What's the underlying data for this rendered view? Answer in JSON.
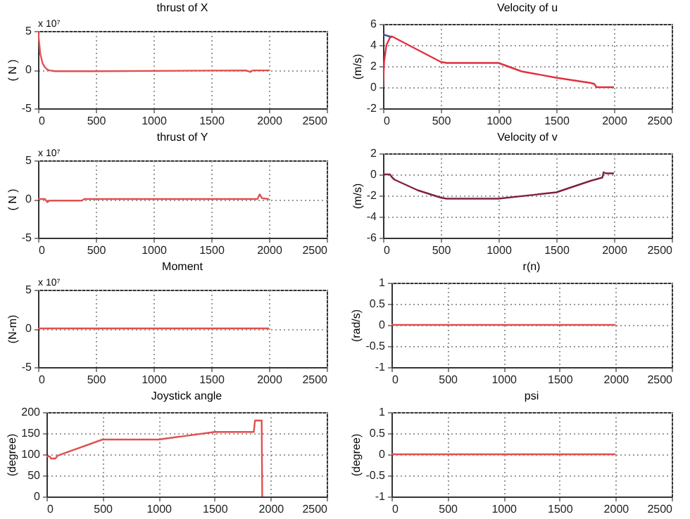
{
  "chart_data": [
    {
      "type": "line",
      "title": "thrust of X",
      "ylabel": "( N )",
      "annotations": [
        "x 10⁷"
      ],
      "xlim": [
        0,
        2500
      ],
      "xticks": [
        0,
        500,
        1000,
        1500,
        2000,
        2500
      ],
      "ylim": [
        -5,
        5
      ],
      "yticks": [
        -5,
        0,
        5
      ],
      "grid": true,
      "x": [
        0,
        10,
        20,
        40,
        60,
        80,
        100,
        150,
        500,
        1800,
        1840,
        1860,
        2000
      ],
      "series": [
        {
          "color": "#e05050",
          "values": [
            5,
            3.5,
            2,
            0.8,
            0.3,
            0,
            -0.1,
            -0.2,
            -0.2,
            -0.1,
            -0.3,
            -0.1,
            -0.1
          ]
        }
      ]
    },
    {
      "type": "line",
      "title": "Velocity of u",
      "ylabel": "(m/s)",
      "xlim": [
        0,
        2500
      ],
      "xticks": [
        0,
        500,
        1000,
        1500,
        2000,
        2500
      ],
      "ylim": [
        -2,
        6
      ],
      "yticks": [
        -2,
        0,
        2,
        4,
        6
      ],
      "grid": true,
      "series": [
        {
          "color": "#4050a0",
          "x": [
            0,
            60,
            80
          ],
          "values": [
            5,
            4.8,
            4.8
          ]
        },
        {
          "color": "#e03040",
          "x": [
            0,
            10,
            30,
            60,
            80,
            500,
            550,
            1000,
            1200,
            1500,
            1800,
            1830,
            1850,
            2000
          ],
          "values": [
            0,
            2.5,
            4,
            4.7,
            4.8,
            2.4,
            2.3,
            2.3,
            1.5,
            0.9,
            0.4,
            0.3,
            0,
            0
          ]
        }
      ]
    },
    {
      "type": "line",
      "title": "thrust of Y",
      "ylabel": "( N )",
      "annotations": [
        "x 10⁷"
      ],
      "xlim": [
        0,
        2500
      ],
      "xticks": [
        0,
        500,
        1000,
        1500,
        2000,
        2500
      ],
      "ylim": [
        -5,
        5
      ],
      "yticks": [
        -5,
        0,
        5
      ],
      "grid": true,
      "x": [
        0,
        60,
        80,
        100,
        380,
        400,
        1900,
        1920,
        1940,
        2000
      ],
      "series": [
        {
          "color": "#e05050",
          "values": [
            0,
            0,
            -0.4,
            -0.2,
            -0.2,
            0,
            0,
            0.6,
            0.1,
            0
          ]
        }
      ]
    },
    {
      "type": "line",
      "title": "Velocity of v",
      "ylabel": "(m/s)",
      "xlim": [
        0,
        2500
      ],
      "xticks": [
        0,
        500,
        1000,
        1500,
        2000,
        2500
      ],
      "ylim": [
        -6,
        2
      ],
      "yticks": [
        -6,
        -4,
        -2,
        0,
        2
      ],
      "grid": true,
      "x": [
        0,
        60,
        80,
        100,
        300,
        500,
        550,
        1000,
        1500,
        1800,
        1900,
        1910,
        1930,
        2000
      ],
      "series": [
        {
          "color": "#802040",
          "values": [
            0,
            0,
            -0.3,
            -0.5,
            -1.5,
            -2.2,
            -2.3,
            -2.3,
            -1.7,
            -0.6,
            -0.3,
            0.2,
            0.1,
            0.1
          ]
        }
      ]
    },
    {
      "type": "line",
      "title": "Moment",
      "ylabel": "(N-m)",
      "annotations": [
        "x 10⁷"
      ],
      "xlim": [
        0,
        2500
      ],
      "xticks": [
        0,
        500,
        1000,
        1500,
        2000,
        2500
      ],
      "ylim": [
        -5,
        5
      ],
      "yticks": [
        -5,
        0,
        5
      ],
      "grid": true,
      "x": [
        0,
        2000
      ],
      "series": [
        {
          "color": "#e05050",
          "values": [
            0,
            0
          ]
        }
      ]
    },
    {
      "type": "line",
      "title": "r(n)",
      "ylabel": "(rad/s)",
      "xlim": [
        0,
        2500
      ],
      "xticks": [
        0,
        500,
        1000,
        1500,
        2000,
        2500
      ],
      "ylim": [
        -1,
        1
      ],
      "yticks": [
        -1,
        -0.5,
        0,
        0.5,
        1
      ],
      "grid": true,
      "x": [
        0,
        2000
      ],
      "series": [
        {
          "color": "#e05050",
          "values": [
            0,
            0
          ]
        }
      ]
    },
    {
      "type": "line",
      "title": "Joystick angle",
      "ylabel": "(degree)",
      "xlim": [
        0,
        2500
      ],
      "xticks": [
        0,
        500,
        1000,
        1500,
        2000,
        2500
      ],
      "ylim": [
        0,
        200
      ],
      "yticks": [
        0,
        50,
        100,
        150,
        200
      ],
      "grid": true,
      "x": [
        0,
        30,
        40,
        80,
        100,
        500,
        1000,
        1500,
        1850,
        1860,
        1920,
        1925
      ],
      "series": [
        {
          "color": "#e05050",
          "values": [
            95,
            95,
            90,
            90,
            97,
            135,
            135,
            153,
            153,
            180,
            180,
            0
          ]
        }
      ]
    },
    {
      "type": "line",
      "title": "psi",
      "ylabel": "(degree)",
      "xlim": [
        0,
        2500
      ],
      "xticks": [
        0,
        500,
        1000,
        1500,
        2000,
        2500
      ],
      "ylim": [
        -1,
        1
      ],
      "yticks": [
        -1,
        -0.5,
        0,
        0.5,
        1
      ],
      "grid": true,
      "x": [
        0,
        2000
      ],
      "series": [
        {
          "color": "#e05050",
          "values": [
            0,
            0
          ]
        }
      ]
    }
  ]
}
